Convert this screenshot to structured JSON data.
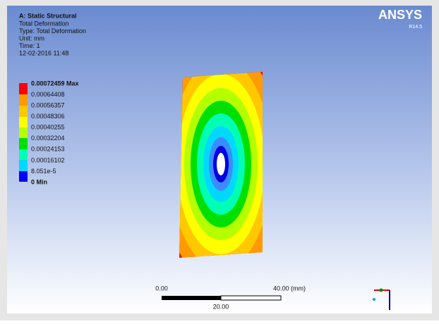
{
  "header": {
    "title": "A: Static Structural",
    "lines": [
      "Total Deformation",
      "Type: Total Deformation",
      "Unit: mm",
      "Time: 1",
      "12-02-2016 11:48"
    ]
  },
  "legend": {
    "labels": [
      "0.00072459 Max",
      "0.00064408",
      "0.00056357",
      "0.00048306",
      "0.00040255",
      "0.00032204",
      "0.00024153",
      "0.00016102",
      "8.051e-5",
      "0 Min"
    ]
  },
  "logo": {
    "name": "ANSYS",
    "version": "R14.5"
  },
  "scale_bar": {
    "start": "0.00",
    "end": "40.00 (mm)",
    "middle": "20.00"
  }
}
